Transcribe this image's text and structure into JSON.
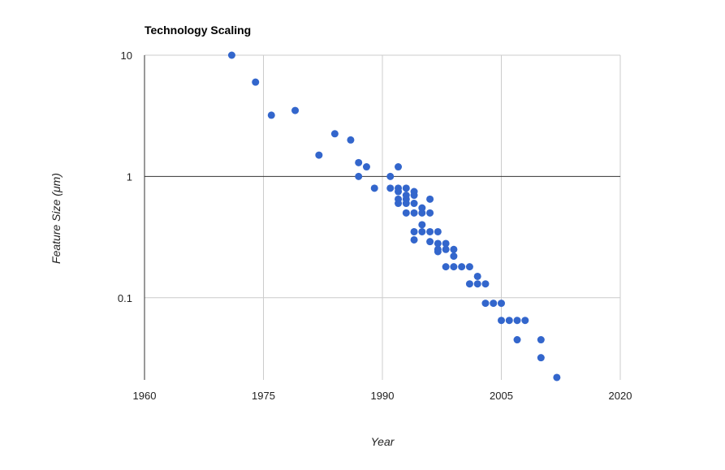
{
  "chart_data": {
    "type": "scatter",
    "title": "Technology Scaling",
    "xlabel": "Year",
    "ylabel": "Feature Size (μm)",
    "xlim": [
      1960,
      2020
    ],
    "ylim": [
      0.021,
      10
    ],
    "y_scale": "log",
    "grid": true,
    "legend": "none",
    "x_ticks": [
      1960,
      1975,
      1990,
      2005,
      2020
    ],
    "x_tick_labels": [
      "1960",
      "1975",
      "1990",
      "2005",
      "2020"
    ],
    "y_ticks": [
      10,
      1,
      0.1
    ],
    "y_tick_labels": [
      "10",
      "1",
      "0.1"
    ],
    "color": "#3366cc",
    "series": [
      {
        "points": [
          [
            1971,
            10
          ],
          [
            1974,
            6
          ],
          [
            1976,
            3.2
          ],
          [
            1979,
            3.5
          ],
          [
            1982,
            1.5
          ],
          [
            1984,
            2.25
          ],
          [
            1986,
            2
          ],
          [
            1987,
            1.3
          ],
          [
            1987,
            1
          ],
          [
            1988,
            1.2
          ],
          [
            1989,
            0.8
          ],
          [
            1991,
            1
          ],
          [
            1991,
            0.8
          ],
          [
            1992,
            1.2
          ],
          [
            1992,
            0.8
          ],
          [
            1992,
            0.75
          ],
          [
            1992,
            0.65
          ],
          [
            1992,
            0.6
          ],
          [
            1993,
            0.8
          ],
          [
            1993,
            0.7
          ],
          [
            1993,
            0.65
          ],
          [
            1993,
            0.6
          ],
          [
            1993,
            0.5
          ],
          [
            1994,
            0.75
          ],
          [
            1994,
            0.7
          ],
          [
            1994,
            0.6
          ],
          [
            1994,
            0.5
          ],
          [
            1994,
            0.35
          ],
          [
            1994,
            0.3
          ],
          [
            1995,
            0.55
          ],
          [
            1995,
            0.5
          ],
          [
            1995,
            0.4
          ],
          [
            1995,
            0.35
          ],
          [
            1996,
            0.65
          ],
          [
            1996,
            0.5
          ],
          [
            1996,
            0.35
          ],
          [
            1996,
            0.29
          ],
          [
            1997,
            0.35
          ],
          [
            1997,
            0.28
          ],
          [
            1997,
            0.25
          ],
          [
            1997,
            0.24
          ],
          [
            1998,
            0.28
          ],
          [
            1998,
            0.25
          ],
          [
            1998,
            0.18
          ],
          [
            1999,
            0.25
          ],
          [
            1999,
            0.22
          ],
          [
            1999,
            0.18
          ],
          [
            2000,
            0.18
          ],
          [
            2001,
            0.18
          ],
          [
            2001,
            0.13
          ],
          [
            2002,
            0.15
          ],
          [
            2002,
            0.13
          ],
          [
            2003,
            0.13
          ],
          [
            2003,
            0.09
          ],
          [
            2004,
            0.09
          ],
          [
            2005,
            0.09
          ],
          [
            2005,
            0.065
          ],
          [
            2006,
            0.065
          ],
          [
            2007,
            0.065
          ],
          [
            2007,
            0.045
          ],
          [
            2008,
            0.065
          ],
          [
            2010,
            0.045
          ],
          [
            2010,
            0.032
          ],
          [
            2012,
            0.022
          ]
        ]
      }
    ]
  }
}
